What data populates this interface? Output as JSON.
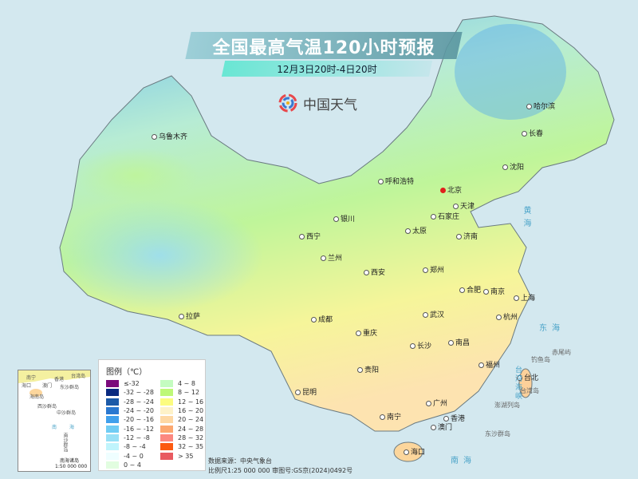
{
  "header": {
    "title": "全国最高气温120小时预报",
    "subtitle": "12月3日20时-4日20时",
    "logo_text": "中国天气"
  },
  "colors": {
    "ocean": "#d3e8ef",
    "north": "#7cc8ef",
    "middle": "#c5f0a6",
    "south": "#fff3a0",
    "plateau": "#8fd3ee"
  },
  "cities": [
    {
      "name": "乌鲁木齐",
      "capital": false
    },
    {
      "name": "哈尔滨"
    },
    {
      "name": "长春"
    },
    {
      "name": "沈阳"
    },
    {
      "name": "呼和浩特"
    },
    {
      "name": "北京",
      "capital": true
    },
    {
      "name": "天津"
    },
    {
      "name": "石家庄"
    },
    {
      "name": "太原"
    },
    {
      "name": "济南"
    },
    {
      "name": "银川"
    },
    {
      "name": "西宁"
    },
    {
      "name": "兰州"
    },
    {
      "name": "西安"
    },
    {
      "name": "郑州"
    },
    {
      "name": "合肥"
    },
    {
      "name": "南京"
    },
    {
      "name": "上海"
    },
    {
      "name": "武汉"
    },
    {
      "name": "杭州"
    },
    {
      "name": "成都"
    },
    {
      "name": "重庆"
    },
    {
      "name": "长沙"
    },
    {
      "name": "南昌"
    },
    {
      "name": "拉萨"
    },
    {
      "name": "贵阳"
    },
    {
      "name": "福州"
    },
    {
      "name": "台北"
    },
    {
      "name": "昆明"
    },
    {
      "name": "南宁"
    },
    {
      "name": "广州"
    },
    {
      "name": "香港"
    },
    {
      "name": "澳门"
    },
    {
      "name": "海口"
    }
  ],
  "seas": {
    "yellow": "黄海",
    "east": "东海",
    "south": "南海",
    "strait": "台湾海峡"
  },
  "islands": {
    "diaoyu": "钓鱼岛",
    "chiwei": "赤尾屿",
    "taiwan": "台湾岛",
    "penghu": "澎湖列岛",
    "dongsha": "东沙群岛"
  },
  "legend": {
    "title": "图例（℃）",
    "items": [
      {
        "label": "≤-32",
        "color": "#7b0a7b"
      },
      {
        "label": "-32 ~ -28",
        "color": "#0a2a80"
      },
      {
        "label": "-28 ~ -24",
        "color": "#1c5aa8"
      },
      {
        "label": "-24 ~ -20",
        "color": "#2a78d0"
      },
      {
        "label": "-20 ~ -16",
        "color": "#40a0ec"
      },
      {
        "label": "-16 ~ -12",
        "color": "#70ccf4"
      },
      {
        "label": "-12 ~ -8",
        "color": "#98e0f6"
      },
      {
        "label": "-8 ~ -4",
        "color": "#c0f4fc"
      },
      {
        "label": "-4 ~ 0",
        "color": "#effeff"
      },
      {
        "label": "0 ~ 4",
        "color": "#e2fde0"
      },
      {
        "label": "4 ~ 8",
        "color": "#c4fcc0"
      },
      {
        "label": "8 ~ 12",
        "color": "#bef878"
      },
      {
        "label": "12 ~ 16",
        "color": "#fcfc80"
      },
      {
        "label": "16 ~ 20",
        "color": "#fef2c8"
      },
      {
        "label": "20 ~ 24",
        "color": "#fed8a4"
      },
      {
        "label": "24 ~ 28",
        "color": "#fca870"
      },
      {
        "label": "28 ~ 32",
        "color": "#fc8880"
      },
      {
        "label": "32 ~ 35",
        "color": "#fc5a10"
      },
      {
        "label": "> 35",
        "color": "#e85a60"
      }
    ]
  },
  "inset": {
    "labels": [
      "南宁",
      "香港",
      "澳门",
      "海口",
      "海南岛",
      "东沙群岛",
      "西沙群岛",
      "中沙群岛",
      "南",
      "海",
      "南沙群岛",
      "台湾岛"
    ],
    "title": "南海诸岛",
    "scale": "1:50 000 000"
  },
  "footer": {
    "source": "数据来源：中央气象台",
    "scale": "比例尺1:25 000 000   审图号:GS京(2024)0492号"
  }
}
